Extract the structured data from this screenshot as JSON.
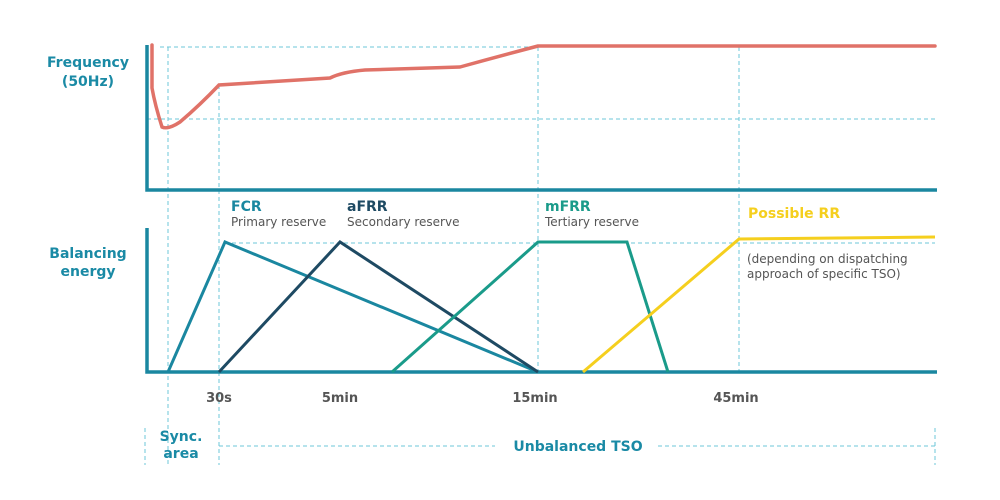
{
  "left_labels": {
    "frequency": [
      "Frequency",
      "(50Hz)"
    ],
    "balancing": [
      "Balancing",
      "energy"
    ]
  },
  "reserves": [
    {
      "name": "FCR",
      "desc": "Primary reserve",
      "color": "#1a87a0"
    },
    {
      "name": "aFRR",
      "desc": "Secondary reserve",
      "color": "#1e4a63"
    },
    {
      "name": "mFRR",
      "desc": "Tertiary reserve",
      "color": "#1a9b8a"
    },
    {
      "name": "Possible RR",
      "note": [
        "(depending on dispatching",
        "approach of specific TSO)"
      ],
      "color": "#f5cf1e"
    }
  ],
  "frequency_color": "#e07268",
  "time_ticks": [
    "30s",
    "5min",
    "15min",
    "45min"
  ],
  "phases": {
    "sync": [
      "Sync.",
      "area"
    ],
    "unbalanced": "Unbalanced TSO"
  }
}
